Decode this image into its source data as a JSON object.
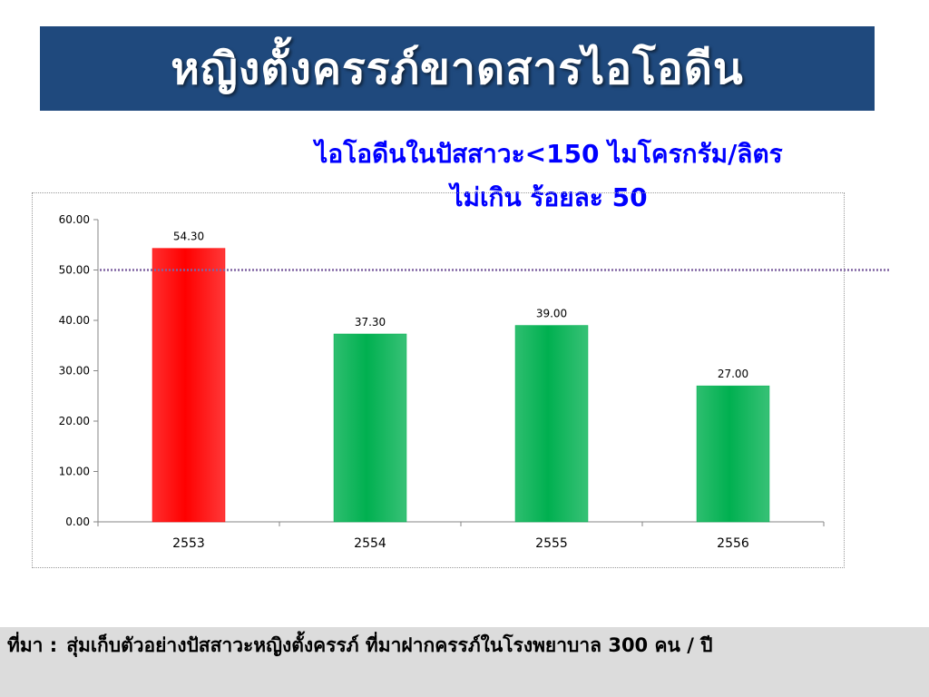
{
  "title": "หญิงตั้งครรภ์ขาดสารไอโอดีน",
  "subtitle_line1": "ไอโอดีนในปัสสาวะ<150 ไมโครกรัม/ลิตร",
  "subtitle_line2": "ไม่เกิน ร้อยละ 50",
  "source": {
    "label": "ที่มา :",
    "text": "สุ่มเก็บตัวอย่างปัสสาวะหญิงตั้งครรภ์ ที่มาฝากครรภ์ในโรงพยาบาล  300 คน / ปี"
  },
  "chart_data": {
    "type": "bar",
    "categories": [
      "2553",
      "2554",
      "2555",
      "2556"
    ],
    "values": [
      54.3,
      37.3,
      39.0,
      27.0
    ],
    "value_labels": [
      "54.30",
      "37.30",
      "39.00",
      "27.00"
    ],
    "bar_colors": [
      "#ff0000",
      "#00b050",
      "#00b050",
      "#00b050"
    ],
    "ylim": [
      0,
      60
    ],
    "y_ticks": [
      "0.00",
      "10.00",
      "20.00",
      "30.00",
      "40.00",
      "50.00",
      "60.00"
    ],
    "y_tick_values": [
      0,
      10,
      20,
      30,
      40,
      50,
      60
    ],
    "reference_line": {
      "value": 50,
      "color": "#8064a2",
      "style": "dotted"
    },
    "grid": false,
    "legend": "none"
  }
}
